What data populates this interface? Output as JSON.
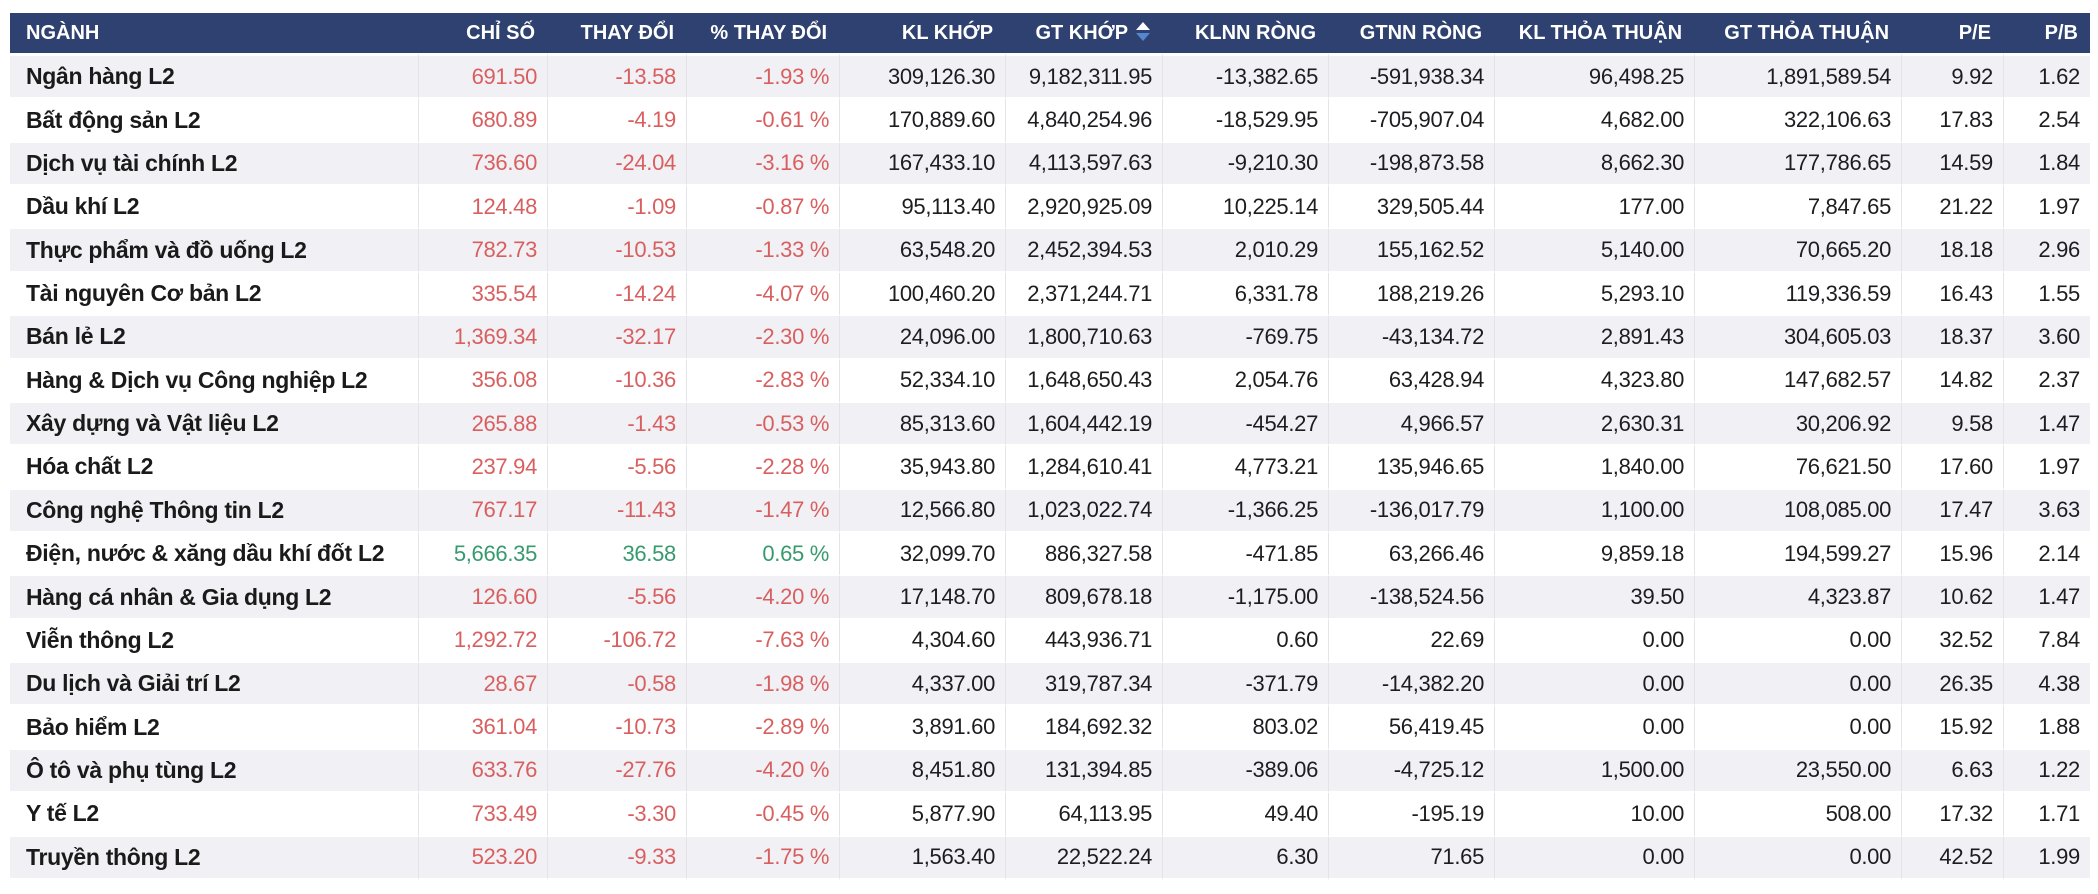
{
  "colors": {
    "header_bg": "#2e4170",
    "header_text": "#ffffff",
    "row_alt_bg": "#f0f0f5",
    "negative_text": "#d95f5f",
    "positive_text": "#379a6e",
    "body_text": "#1d1d20",
    "sort_arrow_active": "#5488cd"
  },
  "table": {
    "sorted_by": "GT KHỚP",
    "sort_direction": "desc",
    "sort_icon": "sort-asc-desc-triangles",
    "columns": [
      {
        "key": "nganh",
        "label": "NGÀNH",
        "align": "left",
        "colored": false,
        "sortable": false
      },
      {
        "key": "chi_so",
        "label": "CHỈ SỐ",
        "align": "right",
        "colored": true,
        "sortable": false
      },
      {
        "key": "thay_doi",
        "label": "THAY ĐỔI",
        "align": "right",
        "colored": true,
        "sortable": false
      },
      {
        "key": "pct_thay_doi",
        "label": "% THAY ĐỔI",
        "align": "right",
        "colored": true,
        "sortable": false
      },
      {
        "key": "kl_khop",
        "label": "KL KHỚP",
        "align": "right",
        "colored": false,
        "sortable": false
      },
      {
        "key": "gt_khop",
        "label": "GT KHỚP",
        "align": "right",
        "colored": false,
        "sortable": true
      },
      {
        "key": "klnn_rong",
        "label": "KLNN RÒNG",
        "align": "right",
        "colored": false,
        "sortable": false
      },
      {
        "key": "gtnn_rong",
        "label": "GTNN RÒNG",
        "align": "right",
        "colored": false,
        "sortable": false
      },
      {
        "key": "kl_thoa_thuan",
        "label": "KL THỎA THUẬN",
        "align": "right",
        "colored": false,
        "sortable": false
      },
      {
        "key": "gt_thoa_thuan",
        "label": "GT THỎA THUẬN",
        "align": "right",
        "colored": false,
        "sortable": false
      },
      {
        "key": "pe",
        "label": "P/E",
        "align": "right",
        "colored": false,
        "sortable": false
      },
      {
        "key": "pb",
        "label": "P/B",
        "align": "right",
        "colored": false,
        "sortable": false
      }
    ],
    "rows": [
      {
        "nganh": "Ngân hàng L2",
        "chi_so": "691.50",
        "thay_doi": "-13.58",
        "pct_thay_doi": "-1.93 %",
        "kl_khop": "309,126.30",
        "gt_khop": "9,182,311.95",
        "klnn_rong": "-13,382.65",
        "gtnn_rong": "-591,938.34",
        "kl_thoa_thuan": "96,498.25",
        "gt_thoa_thuan": "1,891,589.54",
        "pe": "9.92",
        "pb": "1.62",
        "trend": "down"
      },
      {
        "nganh": "Bất động sản L2",
        "chi_so": "680.89",
        "thay_doi": "-4.19",
        "pct_thay_doi": "-0.61 %",
        "kl_khop": "170,889.60",
        "gt_khop": "4,840,254.96",
        "klnn_rong": "-18,529.95",
        "gtnn_rong": "-705,907.04",
        "kl_thoa_thuan": "4,682.00",
        "gt_thoa_thuan": "322,106.63",
        "pe": "17.83",
        "pb": "2.54",
        "trend": "down"
      },
      {
        "nganh": "Dịch vụ tài chính L2",
        "chi_so": "736.60",
        "thay_doi": "-24.04",
        "pct_thay_doi": "-3.16 %",
        "kl_khop": "167,433.10",
        "gt_khop": "4,113,597.63",
        "klnn_rong": "-9,210.30",
        "gtnn_rong": "-198,873.58",
        "kl_thoa_thuan": "8,662.30",
        "gt_thoa_thuan": "177,786.65",
        "pe": "14.59",
        "pb": "1.84",
        "trend": "down"
      },
      {
        "nganh": "Dầu khí L2",
        "chi_so": "124.48",
        "thay_doi": "-1.09",
        "pct_thay_doi": "-0.87 %",
        "kl_khop": "95,113.40",
        "gt_khop": "2,920,925.09",
        "klnn_rong": "10,225.14",
        "gtnn_rong": "329,505.44",
        "kl_thoa_thuan": "177.00",
        "gt_thoa_thuan": "7,847.65",
        "pe": "21.22",
        "pb": "1.97",
        "trend": "down"
      },
      {
        "nganh": "Thực phẩm và đồ uống L2",
        "chi_so": "782.73",
        "thay_doi": "-10.53",
        "pct_thay_doi": "-1.33 %",
        "kl_khop": "63,548.20",
        "gt_khop": "2,452,394.53",
        "klnn_rong": "2,010.29",
        "gtnn_rong": "155,162.52",
        "kl_thoa_thuan": "5,140.00",
        "gt_thoa_thuan": "70,665.20",
        "pe": "18.18",
        "pb": "2.96",
        "trend": "down"
      },
      {
        "nganh": "Tài nguyên Cơ bản L2",
        "chi_so": "335.54",
        "thay_doi": "-14.24",
        "pct_thay_doi": "-4.07 %",
        "kl_khop": "100,460.20",
        "gt_khop": "2,371,244.71",
        "klnn_rong": "6,331.78",
        "gtnn_rong": "188,219.26",
        "kl_thoa_thuan": "5,293.10",
        "gt_thoa_thuan": "119,336.59",
        "pe": "16.43",
        "pb": "1.55",
        "trend": "down"
      },
      {
        "nganh": "Bán lẻ L2",
        "chi_so": "1,369.34",
        "thay_doi": "-32.17",
        "pct_thay_doi": "-2.30 %",
        "kl_khop": "24,096.00",
        "gt_khop": "1,800,710.63",
        "klnn_rong": "-769.75",
        "gtnn_rong": "-43,134.72",
        "kl_thoa_thuan": "2,891.43",
        "gt_thoa_thuan": "304,605.03",
        "pe": "18.37",
        "pb": "3.60",
        "trend": "down"
      },
      {
        "nganh": "Hàng & Dịch vụ Công nghiệp L2",
        "chi_so": "356.08",
        "thay_doi": "-10.36",
        "pct_thay_doi": "-2.83 %",
        "kl_khop": "52,334.10",
        "gt_khop": "1,648,650.43",
        "klnn_rong": "2,054.76",
        "gtnn_rong": "63,428.94",
        "kl_thoa_thuan": "4,323.80",
        "gt_thoa_thuan": "147,682.57",
        "pe": "14.82",
        "pb": "2.37",
        "trend": "down"
      },
      {
        "nganh": "Xây dựng và Vật liệu L2",
        "chi_so": "265.88",
        "thay_doi": "-1.43",
        "pct_thay_doi": "-0.53 %",
        "kl_khop": "85,313.60",
        "gt_khop": "1,604,442.19",
        "klnn_rong": "-454.27",
        "gtnn_rong": "4,966.57",
        "kl_thoa_thuan": "2,630.31",
        "gt_thoa_thuan": "30,206.92",
        "pe": "9.58",
        "pb": "1.47",
        "trend": "down"
      },
      {
        "nganh": "Hóa chất L2",
        "chi_so": "237.94",
        "thay_doi": "-5.56",
        "pct_thay_doi": "-2.28 %",
        "kl_khop": "35,943.80",
        "gt_khop": "1,284,610.41",
        "klnn_rong": "4,773.21",
        "gtnn_rong": "135,946.65",
        "kl_thoa_thuan": "1,840.00",
        "gt_thoa_thuan": "76,621.50",
        "pe": "17.60",
        "pb": "1.97",
        "trend": "down"
      },
      {
        "nganh": "Công nghệ Thông tin L2",
        "chi_so": "767.17",
        "thay_doi": "-11.43",
        "pct_thay_doi": "-1.47 %",
        "kl_khop": "12,566.80",
        "gt_khop": "1,023,022.74",
        "klnn_rong": "-1,366.25",
        "gtnn_rong": "-136,017.79",
        "kl_thoa_thuan": "1,100.00",
        "gt_thoa_thuan": "108,085.00",
        "pe": "17.47",
        "pb": "3.63",
        "trend": "down"
      },
      {
        "nganh": "Điện, nước & xăng dầu khí đốt L2",
        "chi_so": "5,666.35",
        "thay_doi": "36.58",
        "pct_thay_doi": "0.65 %",
        "kl_khop": "32,099.70",
        "gt_khop": "886,327.58",
        "klnn_rong": "-471.85",
        "gtnn_rong": "63,266.46",
        "kl_thoa_thuan": "9,859.18",
        "gt_thoa_thuan": "194,599.27",
        "pe": "15.96",
        "pb": "2.14",
        "trend": "up"
      },
      {
        "nganh": "Hàng cá nhân & Gia dụng L2",
        "chi_so": "126.60",
        "thay_doi": "-5.56",
        "pct_thay_doi": "-4.20 %",
        "kl_khop": "17,148.70",
        "gt_khop": "809,678.18",
        "klnn_rong": "-1,175.00",
        "gtnn_rong": "-138,524.56",
        "kl_thoa_thuan": "39.50",
        "gt_thoa_thuan": "4,323.87",
        "pe": "10.62",
        "pb": "1.47",
        "trend": "down"
      },
      {
        "nganh": "Viễn thông L2",
        "chi_so": "1,292.72",
        "thay_doi": "-106.72",
        "pct_thay_doi": "-7.63 %",
        "kl_khop": "4,304.60",
        "gt_khop": "443,936.71",
        "klnn_rong": "0.60",
        "gtnn_rong": "22.69",
        "kl_thoa_thuan": "0.00",
        "gt_thoa_thuan": "0.00",
        "pe": "32.52",
        "pb": "7.84",
        "trend": "down"
      },
      {
        "nganh": "Du lịch và Giải trí L2",
        "chi_so": "28.67",
        "thay_doi": "-0.58",
        "pct_thay_doi": "-1.98 %",
        "kl_khop": "4,337.00",
        "gt_khop": "319,787.34",
        "klnn_rong": "-371.79",
        "gtnn_rong": "-14,382.20",
        "kl_thoa_thuan": "0.00",
        "gt_thoa_thuan": "0.00",
        "pe": "26.35",
        "pb": "4.38",
        "trend": "down"
      },
      {
        "nganh": "Bảo hiểm L2",
        "chi_so": "361.04",
        "thay_doi": "-10.73",
        "pct_thay_doi": "-2.89 %",
        "kl_khop": "3,891.60",
        "gt_khop": "184,692.32",
        "klnn_rong": "803.02",
        "gtnn_rong": "56,419.45",
        "kl_thoa_thuan": "0.00",
        "gt_thoa_thuan": "0.00",
        "pe": "15.92",
        "pb": "1.88",
        "trend": "down"
      },
      {
        "nganh": "Ô tô và phụ tùng L2",
        "chi_so": "633.76",
        "thay_doi": "-27.76",
        "pct_thay_doi": "-4.20 %",
        "kl_khop": "8,451.80",
        "gt_khop": "131,394.85",
        "klnn_rong": "-389.06",
        "gtnn_rong": "-4,725.12",
        "kl_thoa_thuan": "1,500.00",
        "gt_thoa_thuan": "23,550.00",
        "pe": "6.63",
        "pb": "1.22",
        "trend": "down"
      },
      {
        "nganh": "Y tế L2",
        "chi_so": "733.49",
        "thay_doi": "-3.30",
        "pct_thay_doi": "-0.45 %",
        "kl_khop": "5,877.90",
        "gt_khop": "64,113.95",
        "klnn_rong": "49.40",
        "gtnn_rong": "-195.19",
        "kl_thoa_thuan": "10.00",
        "gt_thoa_thuan": "508.00",
        "pe": "17.32",
        "pb": "1.71",
        "trend": "down"
      },
      {
        "nganh": "Truyền thông L2",
        "chi_so": "523.20",
        "thay_doi": "-9.33",
        "pct_thay_doi": "-1.75 %",
        "kl_khop": "1,563.40",
        "gt_khop": "22,522.24",
        "klnn_rong": "6.30",
        "gtnn_rong": "71.65",
        "kl_thoa_thuan": "0.00",
        "gt_thoa_thuan": "0.00",
        "pe": "42.52",
        "pb": "1.99",
        "trend": "down"
      }
    ]
  }
}
